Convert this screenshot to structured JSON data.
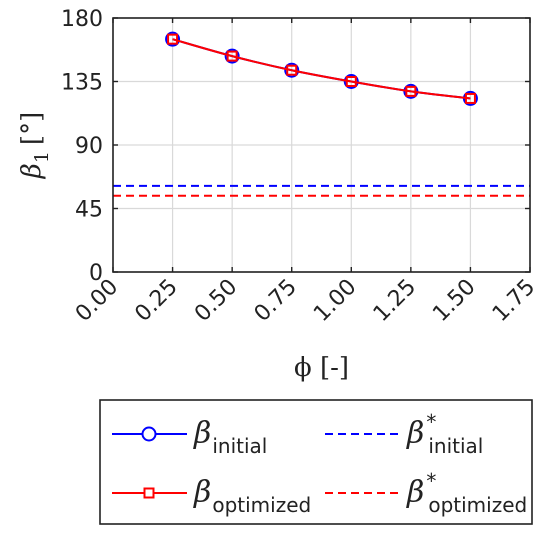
{
  "chart_data": {
    "type": "line",
    "xlabel": "ϕ [-]",
    "ylabel": "β",
    "ylabel_sub": "1",
    "ylabel_unit": "[°]",
    "xlim": [
      0.0,
      1.75
    ],
    "ylim": [
      0,
      180
    ],
    "xticks": [
      "0.00",
      "0.25",
      "0.50",
      "0.75",
      "1.00",
      "1.25",
      "1.50",
      "1.75"
    ],
    "yticks": [
      "0",
      "45",
      "90",
      "135",
      "180"
    ],
    "grid": true,
    "series": [
      {
        "name": "βinitial",
        "symbol": "β",
        "sub": "initial",
        "sup": "",
        "style": "solid",
        "marker": "circle",
        "color": "#0000ff",
        "x": [
          0.25,
          0.5,
          0.75,
          1.0,
          1.25,
          1.5
        ],
        "y": [
          165,
          153,
          143,
          135,
          128,
          123
        ]
      },
      {
        "name": "βoptimized",
        "symbol": "β",
        "sub": "optimized",
        "sup": "",
        "style": "solid",
        "marker": "square",
        "color": "#ff0000",
        "x": [
          0.25,
          0.5,
          0.75,
          1.0,
          1.25,
          1.5
        ],
        "y": [
          165,
          153,
          143,
          135,
          128,
          123
        ]
      },
      {
        "name": "β*initial",
        "symbol": "β",
        "sub": "initial",
        "sup": "*",
        "style": "dashed",
        "marker": "none",
        "color": "#0000ff",
        "x": [
          0.0,
          1.75
        ],
        "y": [
          61,
          61
        ]
      },
      {
        "name": "β*optimized",
        "symbol": "β",
        "sub": "optimized",
        "sup": "*",
        "style": "dashed",
        "marker": "none",
        "color": "#ff0000",
        "x": [
          0.0,
          1.75
        ],
        "y": [
          54,
          54
        ]
      }
    ],
    "legend": {
      "placement": "bottom",
      "columns": 2
    }
  }
}
